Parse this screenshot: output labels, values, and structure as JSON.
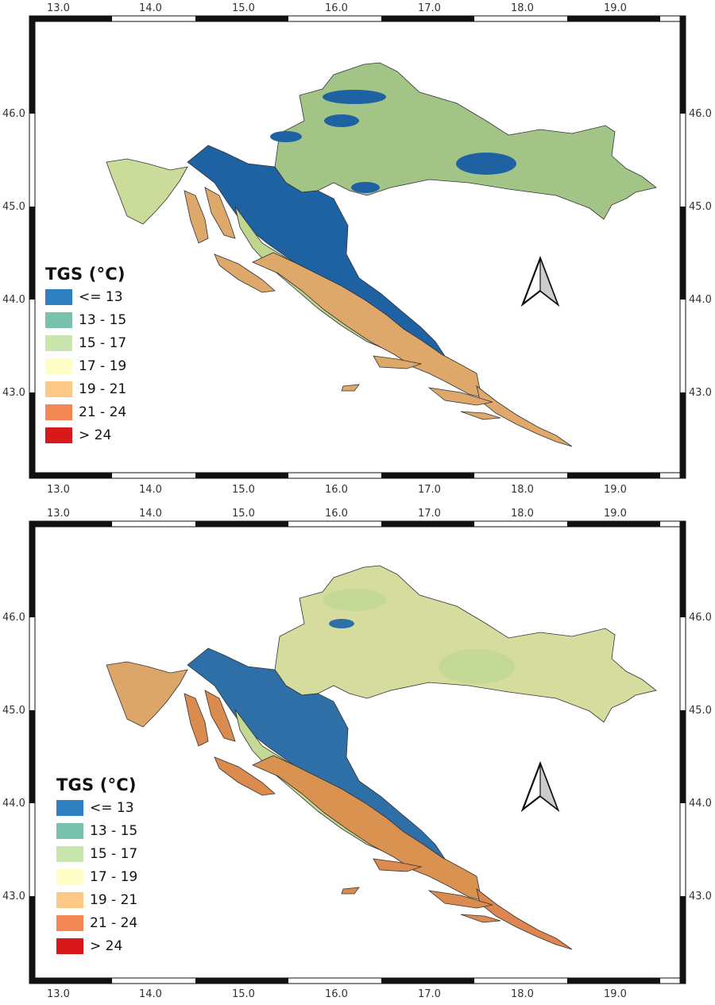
{
  "maps": [
    {
      "id": "map-1",
      "x_ticks": [
        "13.0",
        "14.0",
        "15.0",
        "16.0",
        "17.0",
        "18.0",
        "19.0"
      ],
      "y_ticks": [
        "46.0",
        "45.0",
        "44.0",
        "43.0"
      ],
      "regions": {
        "north": "#a2c587",
        "highland": "#1e62a3",
        "istria": "#cbdc9a",
        "coast": "#bfd68f",
        "dalmatia": "#dda86a",
        "south_coast": "#e0a96b",
        "islands": "#dda86a"
      }
    },
    {
      "id": "map-2",
      "x_ticks": [
        "13.0",
        "14.0",
        "15.0",
        "16.0",
        "17.0",
        "18.0",
        "19.0"
      ],
      "y_ticks": [
        "46.0",
        "45.0",
        "44.0",
        "43.0"
      ],
      "regions": {
        "north": "#d6dc9e",
        "highland": "#2d6fa6",
        "istria": "#dca66a",
        "coast": "#c4d995",
        "dalmatia": "#d9924f",
        "south_coast": "#de864f",
        "islands": "#dc8b4f"
      }
    }
  ],
  "legend": {
    "title": "TGS (°C)",
    "items": [
      {
        "label": "<= 13",
        "color": "#2f7fc1"
      },
      {
        "label": "13 - 15",
        "color": "#79c2ad"
      },
      {
        "label": "15 - 17",
        "color": "#c8e6ad"
      },
      {
        "label": "17 - 19",
        "color": "#fefec6"
      },
      {
        "label": "19 - 21",
        "color": "#fdc986"
      },
      {
        "label": "21 - 24",
        "color": "#f28753"
      },
      {
        "label": "> 24",
        "color": "#d7191c"
      }
    ]
  }
}
